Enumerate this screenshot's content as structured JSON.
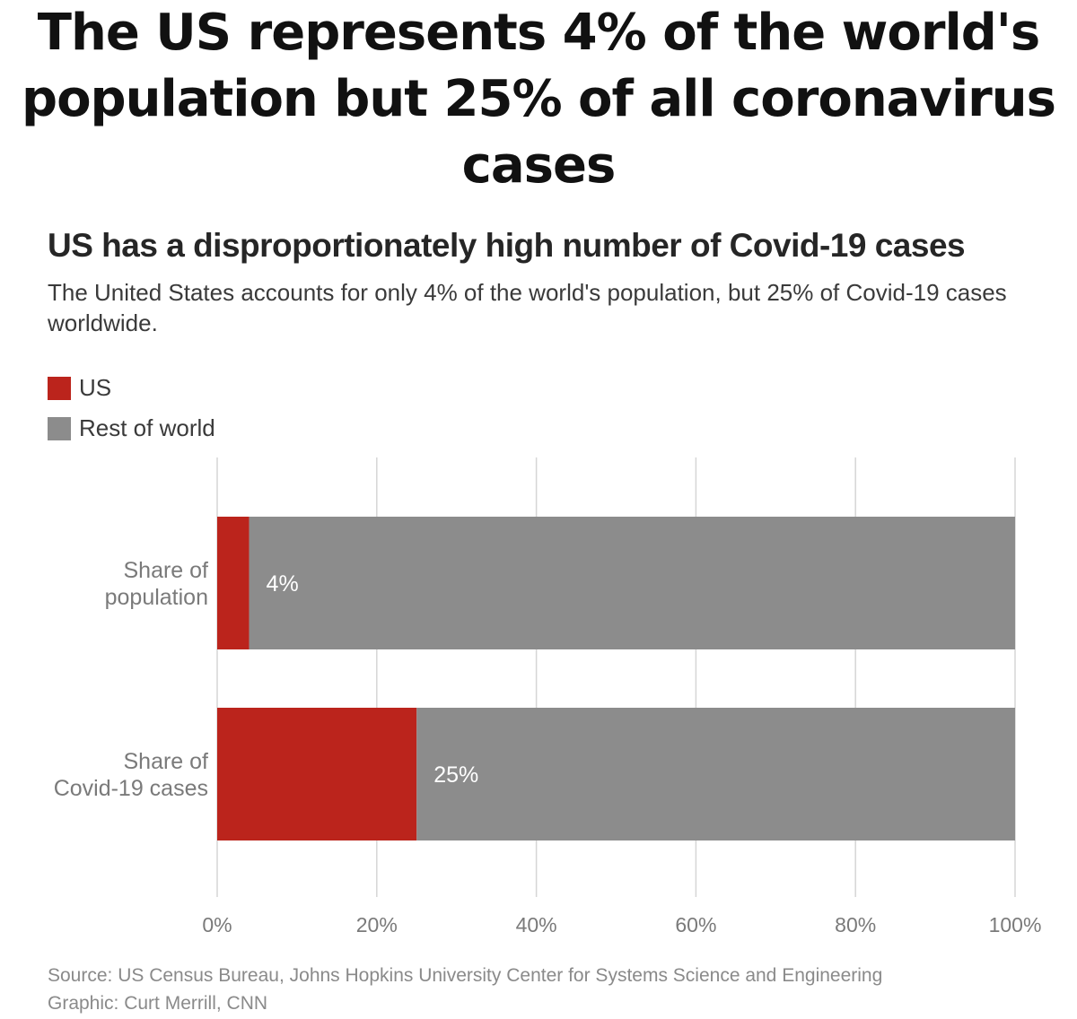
{
  "headline": "The US represents 4% of the world's population but 25% of all coronavirus cases",
  "colors": {
    "us": "#bb241c",
    "rest": "#8c8c8c",
    "grid": "#d6d6d6",
    "tick": "#7a7a7a"
  },
  "chart_data": {
    "type": "bar",
    "orientation": "horizontal",
    "stacked": true,
    "title": "US has a disproportionately high number of Covid-19 cases",
    "subtitle": "The United States accounts for only 4% of the world's population, but 25% of Covid-19 cases worldwide.",
    "categories": [
      {
        "lines": [
          "Share of",
          "population"
        ]
      },
      {
        "lines": [
          "Share of",
          "Covid-19 cases"
        ]
      }
    ],
    "series": [
      {
        "name": "US",
        "color": "#bb241c",
        "values": [
          4,
          25
        ],
        "labels": [
          "4%",
          "25%"
        ]
      },
      {
        "name": "Rest of world",
        "color": "#8c8c8c",
        "values": [
          96,
          75
        ]
      }
    ],
    "xlim": [
      0,
      100
    ],
    "xticks": [
      0,
      20,
      40,
      60,
      80,
      100
    ],
    "xtick_labels": [
      "0%",
      "20%",
      "40%",
      "60%",
      "80%",
      "100%"
    ],
    "grid": true,
    "legend": "top-left"
  },
  "footer": {
    "source": "Source: US Census Bureau, Johns Hopkins University Center for Systems Science and Engineering",
    "credit": "Graphic: Curt Merrill, CNN"
  }
}
